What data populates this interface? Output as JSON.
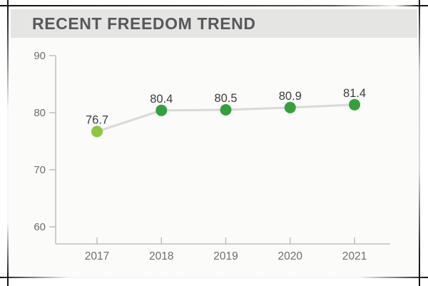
{
  "header": {
    "title": "RECENT FREEDOM TREND",
    "bar_color": "#e5e5e4",
    "text_color": "#57585a"
  },
  "chart_data": {
    "type": "line",
    "title": "RECENT FREEDOM TREND",
    "categories": [
      "2017",
      "2018",
      "2019",
      "2020",
      "2021"
    ],
    "values": [
      76.7,
      80.4,
      80.5,
      80.9,
      81.4
    ],
    "point_labels": [
      "76.7",
      "80.4",
      "80.5",
      "80.9",
      "81.4"
    ],
    "xlabel": "",
    "ylabel": "",
    "ylim": [
      60,
      90
    ],
    "yticks": [
      90,
      80,
      70,
      60
    ],
    "grid": false,
    "legend": "none",
    "line_color": "#dadada",
    "point_colors": [
      "#8dc63f",
      "#34a03c",
      "#34a03c",
      "#34a03c",
      "#34a03c"
    ],
    "axis_color": "#b5b5b5",
    "tick_label_color": "#6d6e70",
    "value_label_color": "#3d3d3d",
    "plot_background": "#fbfbfa"
  }
}
